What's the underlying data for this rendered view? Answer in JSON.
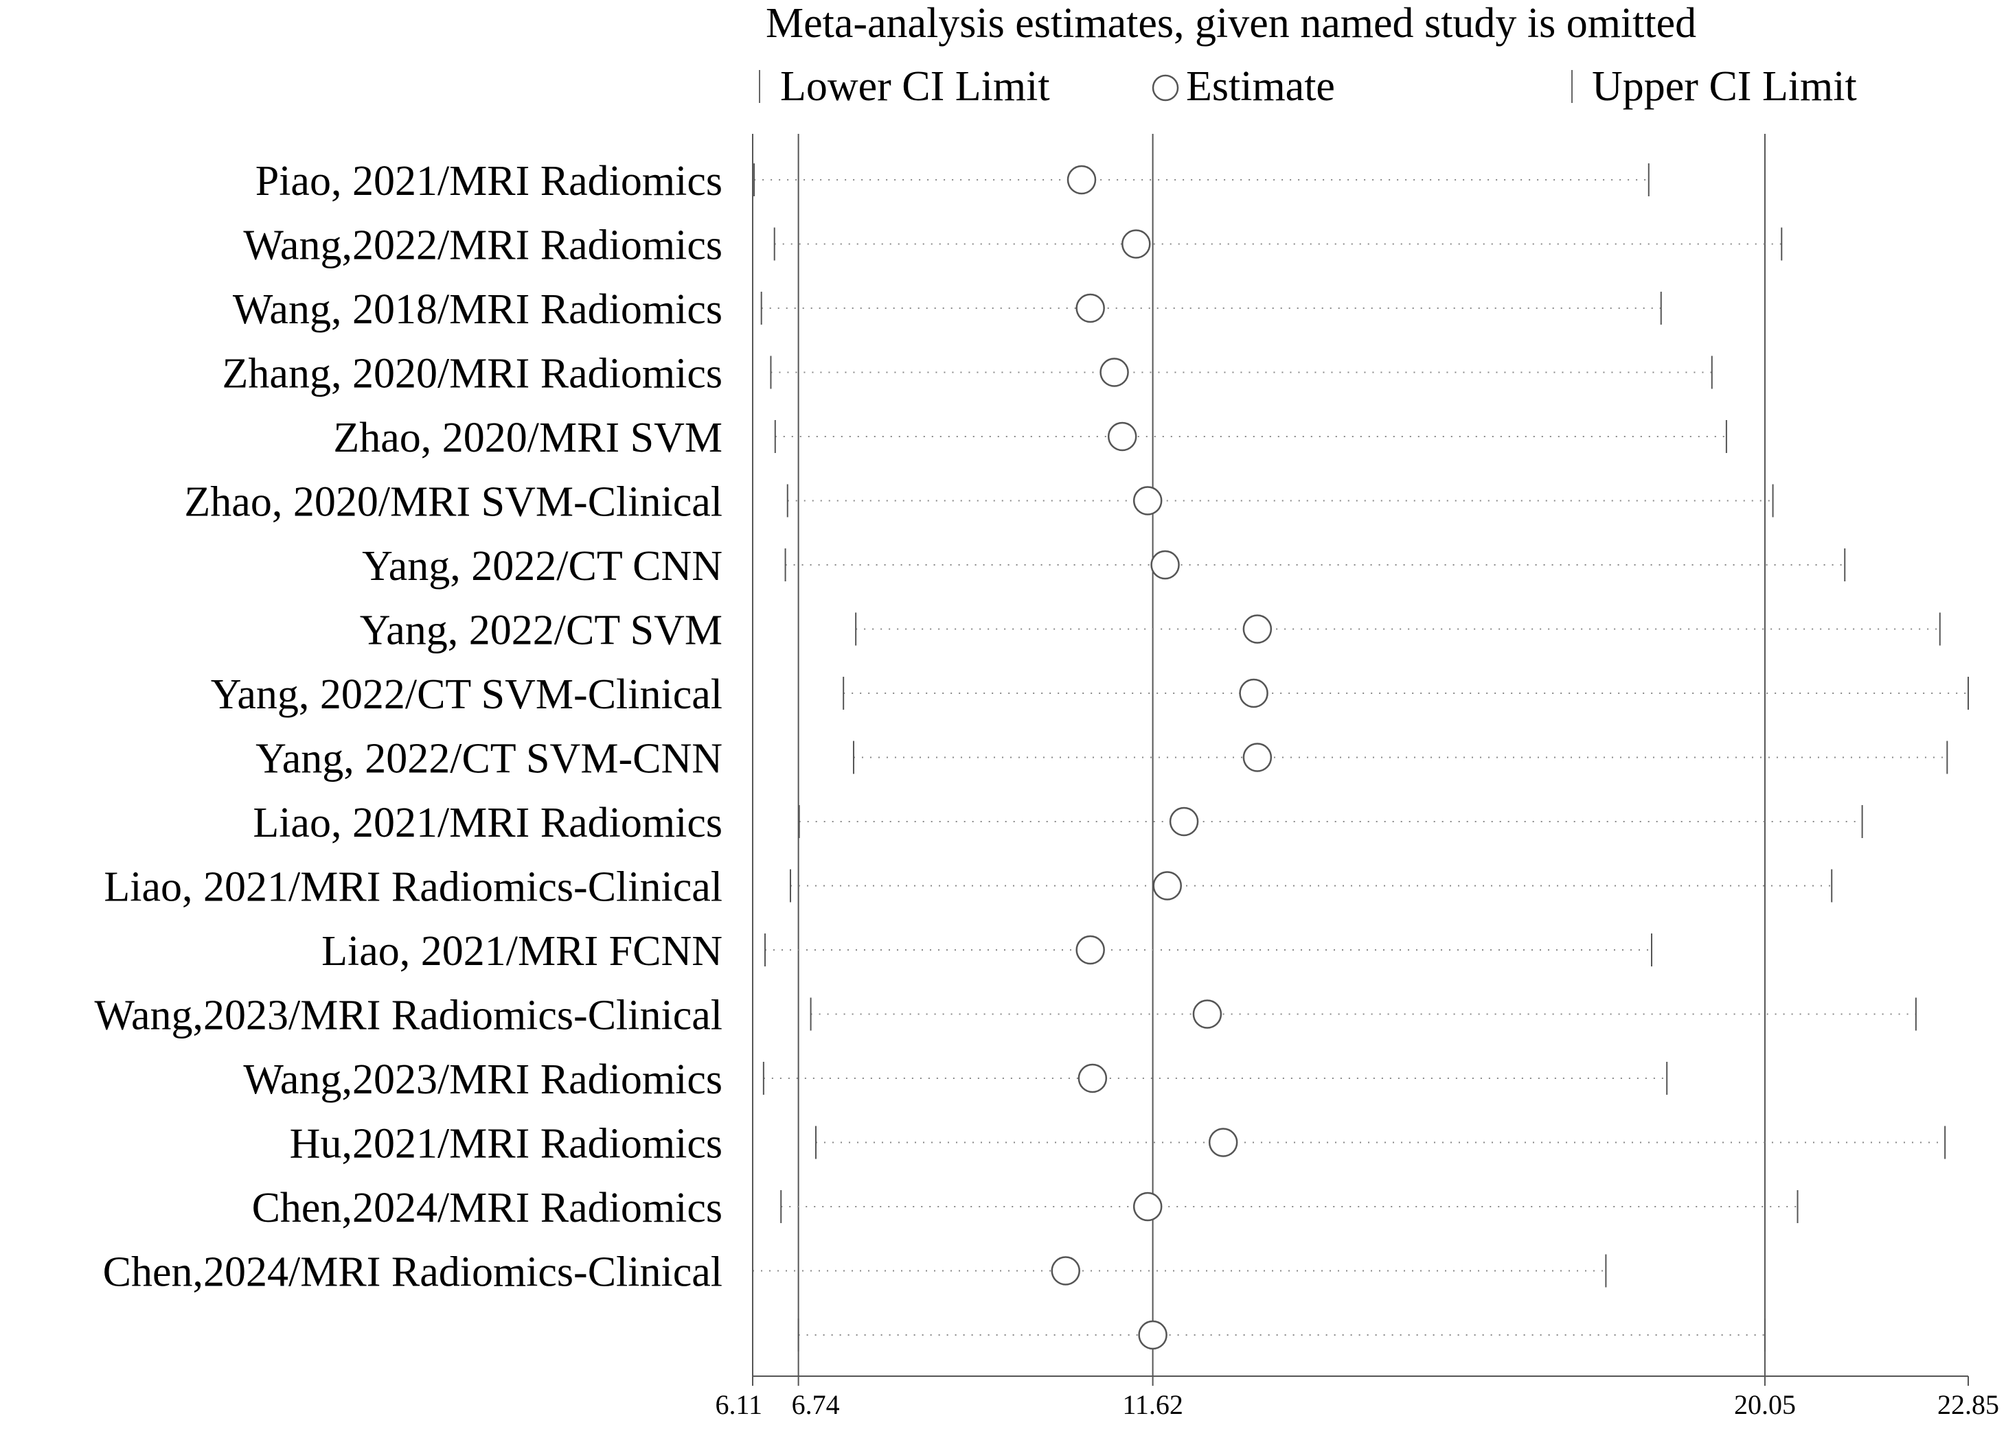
{
  "chart_data": {
    "type": "scatter",
    "title": "Meta-analysis estimates, given named study is omitted",
    "legend": {
      "placement": "top",
      "lower": "Lower CI Limit",
      "estimate": "Estimate",
      "upper": "Upper CI Limit"
    },
    "xlim": [
      6.11,
      22.85
    ],
    "x_ticks": [
      {
        "value": 6.11,
        "label": "6.11"
      },
      {
        "value": 6.74,
        "label": "6.74"
      },
      {
        "value": 11.62,
        "label": "11.62"
      },
      {
        "value": 20.05,
        "label": "20.05"
      },
      {
        "value": 22.85,
        "label": "22.85"
      }
    ],
    "reference_lines": [
      6.74,
      11.62,
      20.05
    ],
    "grid": false,
    "studies": [
      {
        "label": "Piao, 2021/MRI Radiomics",
        "lower": 6.13,
        "estimate": 10.64,
        "upper": 18.45
      },
      {
        "label": "Wang,2022/MRI Radiomics",
        "lower": 6.41,
        "estimate": 11.39,
        "upper": 20.28
      },
      {
        "label": "Wang, 2018/MRI Radiomics",
        "lower": 6.23,
        "estimate": 10.76,
        "upper": 18.62
      },
      {
        "label": "Zhang, 2020/MRI Radiomics",
        "lower": 6.36,
        "estimate": 11.09,
        "upper": 19.32
      },
      {
        "label": "Zhao, 2020/MRI SVM",
        "lower": 6.42,
        "estimate": 11.2,
        "upper": 19.52
      },
      {
        "label": "Zhao, 2020/MRI SVM-Clinical",
        "lower": 6.59,
        "estimate": 11.55,
        "upper": 20.16
      },
      {
        "label": "Yang, 2022/CT CNN",
        "lower": 6.56,
        "estimate": 11.79,
        "upper": 21.15
      },
      {
        "label": "Yang, 2022/CT SVM",
        "lower": 7.53,
        "estimate": 13.06,
        "upper": 22.46
      },
      {
        "label": "Yang, 2022/CT SVM-Clinical",
        "lower": 7.36,
        "estimate": 13.01,
        "upper": 22.85
      },
      {
        "label": "Yang, 2022/CT SVM-CNN",
        "lower": 7.5,
        "estimate": 13.06,
        "upper": 22.56
      },
      {
        "label": "Liao, 2021/MRI Radiomics",
        "lower": 6.75,
        "estimate": 12.05,
        "upper": 21.39
      },
      {
        "label": "Liao, 2021/MRI Radiomics-Clinical",
        "lower": 6.63,
        "estimate": 11.82,
        "upper": 20.97
      },
      {
        "label": "Liao, 2021/MRI FCNN",
        "lower": 6.28,
        "estimate": 10.76,
        "upper": 18.49
      },
      {
        "label": "Wang,2023/MRI Radiomics-Clinical",
        "lower": 6.91,
        "estimate": 12.37,
        "upper": 22.13
      },
      {
        "label": "Wang,2023/MRI Radiomics",
        "lower": 6.26,
        "estimate": 10.79,
        "upper": 18.7
      },
      {
        "label": "Hu,2021/MRI Radiomics",
        "lower": 6.98,
        "estimate": 12.59,
        "upper": 22.53
      },
      {
        "label": "Chen,2024/MRI Radiomics",
        "lower": 6.5,
        "estimate": 11.55,
        "upper": 20.5
      },
      {
        "label": "Chen,2024/MRI Radiomics-Clinical",
        "lower": 6.11,
        "estimate": 10.42,
        "upper": 17.86
      }
    ],
    "pooled": {
      "label": "",
      "lower": 6.74,
      "estimate": 11.62,
      "upper": 20.05
    }
  }
}
